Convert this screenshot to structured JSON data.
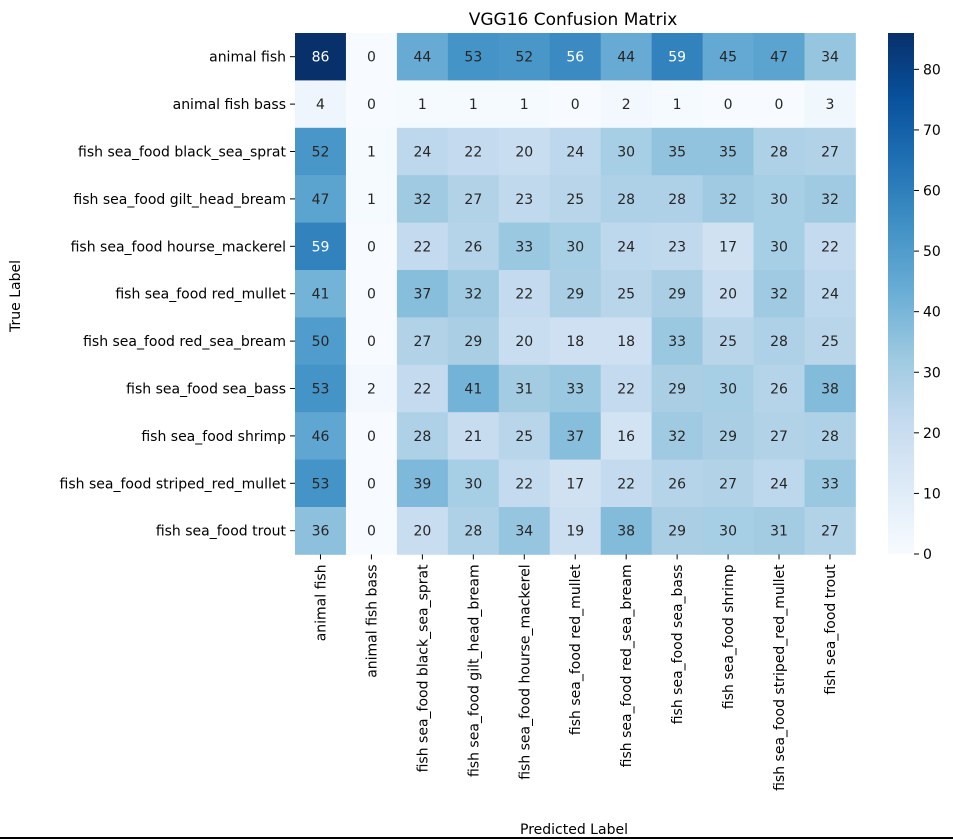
{
  "chart_data": {
    "type": "heatmap",
    "title": "VGG16 Confusion Matrix",
    "xlabel": "Predicted Label",
    "ylabel": "True Label",
    "x_categories": [
      "animal fish",
      "animal fish bass",
      "fish sea_food black_sea_sprat",
      "fish sea_food gilt_head_bream",
      "fish sea_food hourse_mackerel",
      "fish sea_food red_mullet",
      "fish sea_food red_sea_bream",
      "fish sea_food sea_bass",
      "fish sea_food shrimp",
      "fish sea_food striped_red_mullet",
      "fish sea_food trout"
    ],
    "y_categories": [
      "animal fish",
      "animal fish bass",
      "fish sea_food black_sea_sprat",
      "fish sea_food gilt_head_bream",
      "fish sea_food hourse_mackerel",
      "fish sea_food red_mullet",
      "fish sea_food red_sea_bream",
      "fish sea_food sea_bass",
      "fish sea_food shrimp",
      "fish sea_food striped_red_mullet",
      "fish sea_food trout"
    ],
    "values": [
      [
        86,
        0,
        44,
        53,
        52,
        56,
        44,
        59,
        45,
        47,
        34
      ],
      [
        4,
        0,
        1,
        1,
        1,
        0,
        2,
        1,
        0,
        0,
        3
      ],
      [
        52,
        1,
        24,
        22,
        20,
        24,
        30,
        35,
        35,
        28,
        27
      ],
      [
        47,
        1,
        32,
        27,
        23,
        25,
        28,
        28,
        32,
        30,
        32
      ],
      [
        59,
        0,
        22,
        26,
        33,
        30,
        24,
        23,
        17,
        30,
        22
      ],
      [
        41,
        0,
        37,
        32,
        22,
        29,
        25,
        29,
        20,
        32,
        24
      ],
      [
        50,
        0,
        27,
        29,
        20,
        18,
        18,
        33,
        25,
        28,
        25
      ],
      [
        53,
        2,
        22,
        41,
        31,
        33,
        22,
        29,
        30,
        26,
        38
      ],
      [
        46,
        0,
        28,
        21,
        25,
        37,
        16,
        32,
        29,
        27,
        28
      ],
      [
        53,
        0,
        39,
        30,
        22,
        17,
        22,
        26,
        27,
        24,
        33
      ],
      [
        36,
        0,
        20,
        28,
        34,
        19,
        38,
        29,
        30,
        31,
        27
      ]
    ],
    "colormap": "Blues",
    "vmin": 0,
    "vmax": 86,
    "colorbar_ticks": [
      0,
      10,
      20,
      30,
      40,
      50,
      60,
      70,
      80
    ],
    "annot": true
  }
}
